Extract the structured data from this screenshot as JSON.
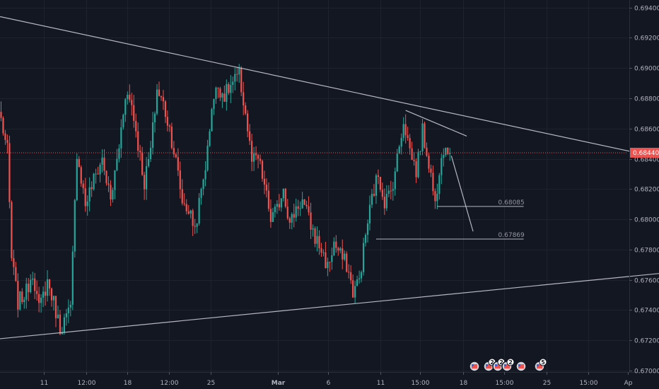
{
  "colors": {
    "background": "#131722",
    "grid": "#1e222d",
    "up": "#26a69a",
    "down": "#ef5350",
    "trendline": "#d1d4dc",
    "axis_text": "#b2b5be",
    "price_line": "#ef5350"
  },
  "chart_data": {
    "type": "candlestick",
    "y_axis": {
      "ylim": [
        0.6699,
        0.6945
      ],
      "ticks": [
        "0.69400",
        "0.69200",
        "0.69000",
        "0.68800",
        "0.68600",
        "0.68400",
        "0.68200",
        "0.68000",
        "0.67800",
        "0.67600",
        "0.67400",
        "0.67200",
        "0.67000"
      ]
    },
    "x_axis": {
      "ticks": [
        "11",
        "12:00",
        "18",
        "12:00",
        "25",
        "Mar",
        "6",
        "11",
        "15:00",
        "18",
        "15:00",
        "25",
        "15:00",
        "Ap"
      ]
    },
    "current_price": "0.68440",
    "current_value": 0.6844,
    "levels": [
      {
        "label": "0.68085",
        "value": 0.68085
      },
      {
        "label": "0.67869",
        "value": 0.67869
      }
    ],
    "trendlines": [
      {
        "name": "upper-resistance",
        "points": [
          [
            -0.5,
            0.6934
          ],
          [
            318.4,
            0.6839
          ]
        ]
      },
      {
        "name": "lower-support",
        "points": [
          [
            -0.5,
            0.6721
          ],
          [
            318.4,
            0.6765
          ]
        ]
      }
    ],
    "projection": [
      [
        213.7,
        0.6842
      ],
      [
        224.0,
        0.6792
      ]
    ],
    "candle_close_anchors": [
      [
        0,
        0.6866
      ],
      [
        3,
        0.6845
      ],
      [
        5,
        0.6774
      ],
      [
        8,
        0.6745
      ],
      [
        12,
        0.6752
      ],
      [
        15,
        0.6766
      ],
      [
        18,
        0.674
      ],
      [
        22,
        0.6759
      ],
      [
        25,
        0.6745
      ],
      [
        28,
        0.6728
      ],
      [
        33,
        0.674
      ],
      [
        36,
        0.6845
      ],
      [
        40,
        0.681
      ],
      [
        44,
        0.6826
      ],
      [
        48,
        0.684
      ],
      [
        52,
        0.6812
      ],
      [
        56,
        0.6848
      ],
      [
        59,
        0.6884
      ],
      [
        62,
        0.6876
      ],
      [
        65,
        0.685
      ],
      [
        68,
        0.6824
      ],
      [
        71,
        0.6846
      ],
      [
        74,
        0.6886
      ],
      [
        77,
        0.6876
      ],
      [
        80,
        0.686
      ],
      [
        83,
        0.6838
      ],
      [
        86,
        0.6812
      ],
      [
        89,
        0.6806
      ],
      [
        92,
        0.6794
      ],
      [
        95,
        0.6818
      ],
      [
        98,
        0.6845
      ],
      [
        100,
        0.6876
      ],
      [
        103,
        0.6888
      ],
      [
        106,
        0.6882
      ],
      [
        110,
        0.689
      ],
      [
        113,
        0.6895
      ],
      [
        116,
        0.687
      ],
      [
        119,
        0.6838
      ],
      [
        122,
        0.684
      ],
      [
        125,
        0.6822
      ],
      [
        128,
        0.68
      ],
      [
        131,
        0.6806
      ],
      [
        134,
        0.6822
      ],
      [
        137,
        0.6796
      ],
      [
        140,
        0.6808
      ],
      [
        143,
        0.6812
      ],
      [
        146,
        0.68
      ],
      [
        149,
        0.6788
      ],
      [
        152,
        0.678
      ],
      [
        155,
        0.6768
      ],
      [
        158,
        0.6784
      ],
      [
        161,
        0.6776
      ],
      [
        164,
        0.677
      ],
      [
        167,
        0.6752
      ],
      [
        170,
        0.676
      ],
      [
        173,
        0.679
      ],
      [
        176,
        0.6814
      ],
      [
        179,
        0.683
      ],
      [
        182,
        0.6812
      ],
      [
        185,
        0.6818
      ],
      [
        188,
        0.684
      ],
      [
        191,
        0.6866
      ],
      [
        194,
        0.6846
      ],
      [
        197,
        0.6832
      ],
      [
        200,
        0.6858
      ],
      [
        203,
        0.6838
      ],
      [
        206,
        0.681
      ],
      [
        209,
        0.6846
      ],
      [
        212,
        0.6848
      ],
      [
        213,
        0.6844
      ]
    ]
  },
  "toolbar_badges": [
    {
      "name": "flag-icon",
      "count": ""
    },
    {
      "name": "flag-icon",
      "count": "2"
    },
    {
      "name": "flag-icon",
      "count": "2"
    },
    {
      "name": "flag-icon",
      "count": "2"
    },
    {
      "name": "flag-icon",
      "count": ""
    },
    {
      "name": "flag-icon",
      "count": "5"
    }
  ]
}
